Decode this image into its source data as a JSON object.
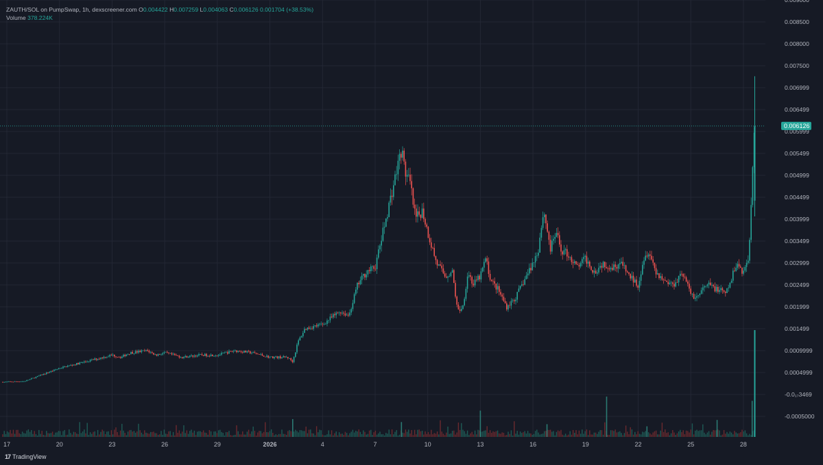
{
  "legend": {
    "symbol": "ZAUTH/SOL on PumpSwap, 1h, dexscreener.com",
    "o_label": "O",
    "o": "0.004422",
    "h_label": "H",
    "h": "0.007259",
    "l_label": "L",
    "l": "0.004063",
    "c_label": "C",
    "c": "0.006126",
    "change": "0.001704 (+38.53%)",
    "volume_label": "Volume",
    "volume": "378.224K"
  },
  "branding": {
    "logo": "17",
    "name": "TradingView"
  },
  "colors": {
    "background": "#161a25",
    "grid": "#232734",
    "up": "#26a69a",
    "down": "#ef5350",
    "text": "#b2b5be"
  },
  "chart_data": {
    "type": "candlestick",
    "title": "ZAUTH/SOL on PumpSwap, 1h, dexscreener.com",
    "interval": "1h",
    "current_price": 0.006126,
    "current_price_label": "0.006126",
    "y_ticks": [
      {
        "value": 0.009,
        "label": "0.009000"
      },
      {
        "value": 0.0085,
        "label": "0.008500"
      },
      {
        "value": 0.008,
        "label": "0.008000"
      },
      {
        "value": 0.0075,
        "label": "0.007500"
      },
      {
        "value": 0.007,
        "label": "0.006999"
      },
      {
        "value": 0.0065,
        "label": "0.006499"
      },
      {
        "value": 0.006,
        "label": "0.005999"
      },
      {
        "value": 0.0055,
        "label": "0.005499"
      },
      {
        "value": 0.005,
        "label": "0.004999"
      },
      {
        "value": 0.0045,
        "label": "0.004499"
      },
      {
        "value": 0.004,
        "label": "0.003999"
      },
      {
        "value": 0.0035,
        "label": "0.003499"
      },
      {
        "value": 0.003,
        "label": "0.002999"
      },
      {
        "value": 0.0025,
        "label": "0.002499"
      },
      {
        "value": 0.002,
        "label": "0.001999"
      },
      {
        "value": 0.0015,
        "label": "0.001499"
      },
      {
        "value": 0.001,
        "label": "0.0009999"
      },
      {
        "value": 0.0005,
        "label": "0.0004999"
      },
      {
        "value": 0.0,
        "label": "-0.0₁₇3469"
      },
      {
        "value": -0.0005,
        "label": "-0.0005000"
      }
    ],
    "x_ticks": [
      {
        "day": 17,
        "label": "17"
      },
      {
        "day": 20,
        "label": "20"
      },
      {
        "day": 23,
        "label": "23"
      },
      {
        "day": 26,
        "label": "26"
      },
      {
        "day": 29,
        "label": "29"
      },
      {
        "day": 32,
        "label": "2026"
      },
      {
        "day": 35,
        "label": "4"
      },
      {
        "day": 38,
        "label": "7"
      },
      {
        "day": 41,
        "label": "10"
      },
      {
        "day": 44,
        "label": "13"
      },
      {
        "day": 47,
        "label": "16"
      },
      {
        "day": 50,
        "label": "19"
      },
      {
        "day": 53,
        "label": "22"
      },
      {
        "day": 56,
        "label": "25"
      },
      {
        "day": 59,
        "label": "28"
      }
    ],
    "price_path": [
      [
        16.5,
        0.00028
      ],
      [
        18.0,
        0.0003
      ],
      [
        19.0,
        0.00045
      ],
      [
        20.0,
        0.0006
      ],
      [
        21.0,
        0.0007
      ],
      [
        22.0,
        0.0008
      ],
      [
        23.0,
        0.0009
      ],
      [
        23.5,
        0.00085
      ],
      [
        24.0,
        0.00095
      ],
      [
        25.0,
        0.001
      ],
      [
        25.5,
        0.0009
      ],
      [
        26.0,
        0.00095
      ],
      [
        27.0,
        0.00085
      ],
      [
        28.0,
        0.0009
      ],
      [
        29.0,
        0.0009
      ],
      [
        30.0,
        0.001
      ],
      [
        31.0,
        0.00095
      ],
      [
        32.0,
        0.00085
      ],
      [
        33.0,
        0.00085
      ],
      [
        33.3,
        0.00075
      ],
      [
        33.6,
        0.0012
      ],
      [
        34.0,
        0.0015
      ],
      [
        35.0,
        0.0016
      ],
      [
        36.0,
        0.0019
      ],
      [
        36.5,
        0.0018
      ],
      [
        37.0,
        0.0025
      ],
      [
        37.5,
        0.0028
      ],
      [
        38.0,
        0.0029
      ],
      [
        38.5,
        0.0038
      ],
      [
        39.0,
        0.0047
      ],
      [
        39.5,
        0.0056
      ],
      [
        39.7,
        0.0051
      ],
      [
        40.0,
        0.0048
      ],
      [
        40.3,
        0.004
      ],
      [
        40.7,
        0.0042
      ],
      [
        41.0,
        0.0037
      ],
      [
        41.5,
        0.003
      ],
      [
        42.0,
        0.0027
      ],
      [
        42.4,
        0.0028
      ],
      [
        42.7,
        0.0019
      ],
      [
        43.0,
        0.002
      ],
      [
        43.3,
        0.0028
      ],
      [
        43.6,
        0.0025
      ],
      [
        44.0,
        0.0027
      ],
      [
        44.3,
        0.0031
      ],
      [
        44.6,
        0.0026
      ],
      [
        45.0,
        0.0024
      ],
      [
        45.5,
        0.002
      ],
      [
        46.0,
        0.0022
      ],
      [
        46.5,
        0.0026
      ],
      [
        47.0,
        0.003
      ],
      [
        47.3,
        0.0033
      ],
      [
        47.6,
        0.0042
      ],
      [
        47.8,
        0.0038
      ],
      [
        48.0,
        0.0033
      ],
      [
        48.3,
        0.0037
      ],
      [
        48.6,
        0.0033
      ],
      [
        49.0,
        0.0032
      ],
      [
        49.5,
        0.0029
      ],
      [
        50.0,
        0.0031
      ],
      [
        50.5,
        0.0028
      ],
      [
        51.0,
        0.003
      ],
      [
        51.5,
        0.0029
      ],
      [
        52.0,
        0.003
      ],
      [
        52.5,
        0.0027
      ],
      [
        53.0,
        0.0025
      ],
      [
        53.3,
        0.0031
      ],
      [
        53.6,
        0.0033
      ],
      [
        54.0,
        0.0028
      ],
      [
        54.5,
        0.0026
      ],
      [
        55.0,
        0.0025
      ],
      [
        55.5,
        0.0028
      ],
      [
        56.0,
        0.0023
      ],
      [
        56.3,
        0.0022
      ],
      [
        56.7,
        0.0024
      ],
      [
        57.0,
        0.0025
      ],
      [
        57.5,
        0.0024
      ],
      [
        58.0,
        0.0023
      ],
      [
        58.3,
        0.0026
      ],
      [
        58.6,
        0.003
      ],
      [
        59.0,
        0.0028
      ],
      [
        59.3,
        0.0031
      ],
      [
        59.45,
        0.00442
      ],
      [
        59.6,
        0.006126
      ]
    ],
    "volume_spikes": [
      [
        33.3,
        0.42
      ],
      [
        39.5,
        0.35
      ],
      [
        44.0,
        0.62
      ],
      [
        47.8,
        0.3
      ],
      [
        51.2,
        0.95
      ],
      [
        53.5,
        0.25
      ],
      [
        57.5,
        0.4
      ],
      [
        59.5,
        0.85
      ]
    ]
  }
}
